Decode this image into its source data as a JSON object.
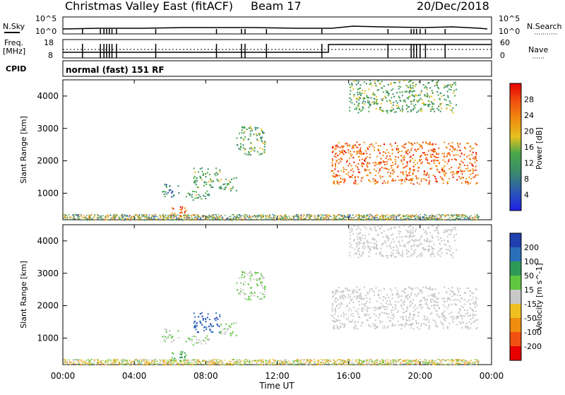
{
  "header": {
    "station": "Christmas Valley East (fitACF)",
    "beam": "Beam 17",
    "date": "20/Dec/2018"
  },
  "nsky": {
    "label": "N.Sky",
    "tick_top": "10^5",
    "tick_bottom": "10^0",
    "right_label": "N.Search",
    "right_tick_top": "10^5",
    "right_tick_bottom": "10^0"
  },
  "freq": {
    "label_line1": "Freq.",
    "label_line2": "[MHz]",
    "tick_top": "18",
    "tick_bottom": "8",
    "right_label": "Nave",
    "right_tick_top": "60",
    "right_tick_bottom": "0"
  },
  "cpid": {
    "label": "CPID",
    "mode": "normal (fast) 151 RF"
  },
  "x_axis": {
    "ticks": [
      "00:00",
      "04:00",
      "08:00",
      "12:00",
      "16:00",
      "20:00",
      "00:00"
    ],
    "label": "Time UT"
  },
  "power_panel": {
    "ylabel": "Slant Range [km]",
    "yticks": [
      "1000",
      "2000",
      "3000",
      "4000"
    ],
    "colorbar_label": "Power [dB]",
    "colorbar_ticks": [
      "4",
      "8",
      "12",
      "16",
      "20",
      "24",
      "28"
    ],
    "colors": [
      "#1f1fe6",
      "#2a55b8",
      "#3a8a6a",
      "#4aa84a",
      "#e6c020",
      "#f08c10",
      "#f05010",
      "#e60000"
    ]
  },
  "velocity_panel": {
    "ylabel": "Slant Range [km]",
    "yticks": [
      "1000",
      "2000",
      "3000",
      "4000"
    ],
    "colorbar_label": "Velocity [m s^-1]",
    "colorbar_ticks": [
      "200",
      "100",
      "50",
      "15",
      "-15",
      "-50",
      "-100",
      "-200"
    ],
    "colors": [
      "#2040b0",
      "#2a70b8",
      "#2e9a5a",
      "#60c840",
      "#c8c8c8",
      "#f0c020",
      "#f08c10",
      "#f05010",
      "#e60000"
    ]
  },
  "chart_data": {
    "type": "heatmap",
    "x_range": [
      "00:00",
      "00:00"
    ],
    "y_range_km": [
      180,
      4500
    ],
    "echo_regions": [
      {
        "start_hour": 5.5,
        "end_hour": 6.5,
        "range_km": [
          900,
          1300
        ],
        "power_db": 8,
        "velocity": 15
      },
      {
        "start_hour": 6.0,
        "end_hour": 7.2,
        "range_km": [
          300,
          600
        ],
        "power_db": 24,
        "velocity": 50
      },
      {
        "start_hour": 6.8,
        "end_hour": 8.2,
        "range_km": [
          800,
          1100
        ],
        "power_db": 12,
        "velocity": 15
      },
      {
        "start_hour": 7.3,
        "end_hour": 8.8,
        "range_km": [
          1200,
          1800
        ],
        "power_db": 12,
        "velocity": 200
      },
      {
        "start_hour": 8.7,
        "end_hour": 9.7,
        "range_km": [
          1100,
          1500
        ],
        "power_db": 12,
        "velocity": 15
      },
      {
        "start_hour": 9.7,
        "end_hour": 11.3,
        "range_km": [
          2200,
          3100
        ],
        "power_db": 12,
        "velocity": 15
      },
      {
        "start_hour": 15.0,
        "end_hour": 23.2,
        "range_km": [
          1300,
          2600
        ],
        "power_db": 24,
        "velocity": 0
      },
      {
        "start_hour": 16.0,
        "end_hour": 22.0,
        "range_km": [
          3500,
          4500
        ],
        "power_db": 12,
        "velocity": 0
      }
    ]
  }
}
